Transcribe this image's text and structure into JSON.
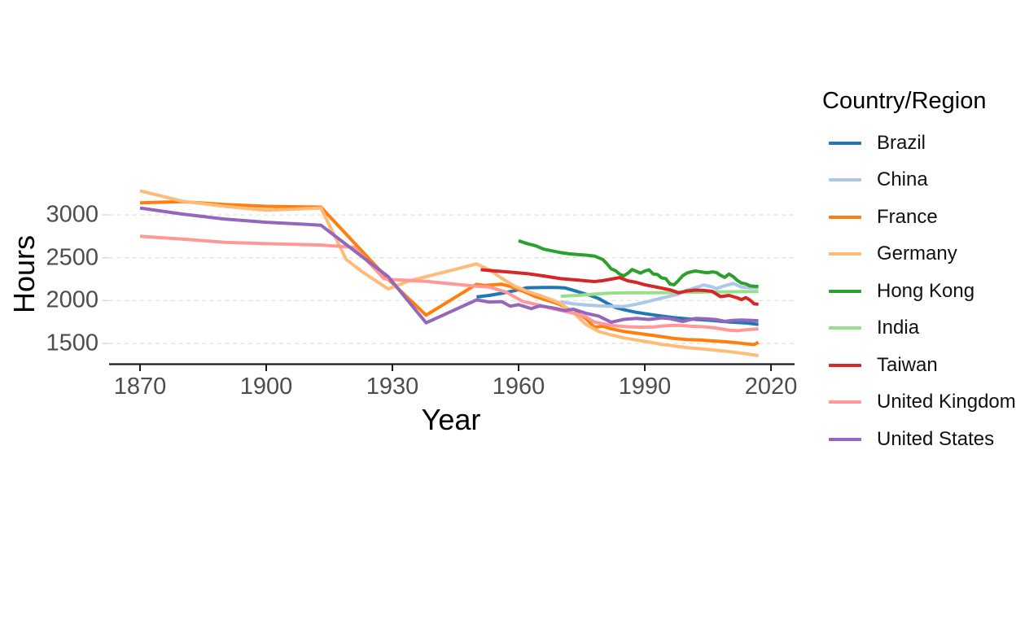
{
  "figure": {
    "background": "#ffffff",
    "kind": "line-chart-screenshot"
  },
  "axes": {
    "x": {
      "label": "Year",
      "ticks": [
        1870,
        1900,
        1930,
        1960,
        1990,
        2020
      ]
    },
    "y": {
      "label": "Hours",
      "ticks": [
        1500,
        2000,
        2500,
        3000
      ]
    }
  },
  "legend": {
    "title": "Country/Region",
    "position": "right"
  },
  "styles": {
    "tick_label_color": "#4d4d4d",
    "axis_title_color": "#000000",
    "axis_line_color": "#1a1a1a",
    "grid_color": "#e3e3e3",
    "y_tick_mark_color": "#d6d6d6",
    "series_stroke_width": 4
  },
  "chart_data": {
    "type": "line",
    "title": "",
    "xlabel": "Year",
    "ylabel": "Hours",
    "xlim": [
      1862.65,
      2025.6
    ],
    "ylim": [
      1258,
      3399
    ],
    "x_ticks": [
      1870,
      1900,
      1930,
      1960,
      1990,
      2020
    ],
    "y_ticks": [
      1500,
      2000,
      2500,
      3000
    ],
    "grid": "horizontal-dashed-major-y",
    "legend_position": "right",
    "legend_title": "Country/Region",
    "series": [
      {
        "name": "Brazil",
        "color": "#1f77b4",
        "points": [
          [
            1950,
            2042
          ],
          [
            1953,
            2060
          ],
          [
            1956,
            2085
          ],
          [
            1959,
            2115
          ],
          [
            1962,
            2150
          ],
          [
            1966,
            2153
          ],
          [
            1969,
            2152
          ],
          [
            1971,
            2148
          ],
          [
            1973,
            2120
          ],
          [
            1975,
            2090
          ],
          [
            1977,
            2060
          ],
          [
            1979,
            2025
          ],
          [
            1981,
            1970
          ],
          [
            1983,
            1920
          ],
          [
            1985,
            1893
          ],
          [
            1988,
            1863
          ],
          [
            1991,
            1840
          ],
          [
            1994,
            1820
          ],
          [
            1997,
            1800
          ],
          [
            2000,
            1788
          ],
          [
            2003,
            1778
          ],
          [
            2006,
            1768
          ],
          [
            2009,
            1755
          ],
          [
            2012,
            1745
          ],
          [
            2014,
            1738
          ],
          [
            2016,
            1728
          ],
          [
            2017,
            1722
          ]
        ]
      },
      {
        "name": "China",
        "color": "#aec7e8",
        "points": [
          [
            1970,
            1985
          ],
          [
            1973,
            1962
          ],
          [
            1976,
            1948
          ],
          [
            1979,
            1940
          ],
          [
            1982,
            1933
          ],
          [
            1985,
            1930
          ],
          [
            1988,
            1958
          ],
          [
            1990,
            1980
          ],
          [
            1992,
            2005
          ],
          [
            1995,
            2040
          ],
          [
            1998,
            2075
          ],
          [
            2000,
            2122
          ],
          [
            2002,
            2150
          ],
          [
            2004,
            2182
          ],
          [
            2006,
            2160
          ],
          [
            2007,
            2140
          ],
          [
            2009,
            2172
          ],
          [
            2011,
            2200
          ],
          [
            2013,
            2158
          ],
          [
            2015,
            2150
          ],
          [
            2017,
            2147
          ]
        ]
      },
      {
        "name": "France",
        "color": "#ff7f0e",
        "points": [
          [
            1870,
            3140
          ],
          [
            1880,
            3155
          ],
          [
            1890,
            3122
          ],
          [
            1900,
            3100
          ],
          [
            1913,
            3090
          ],
          [
            1929,
            2250
          ],
          [
            1938,
            1830
          ],
          [
            1950,
            2190
          ],
          [
            1952,
            2175
          ],
          [
            1954,
            2185
          ],
          [
            1956,
            2190
          ],
          [
            1958,
            2165
          ],
          [
            1960,
            2130
          ],
          [
            1962,
            2090
          ],
          [
            1964,
            2046
          ],
          [
            1966,
            2015
          ],
          [
            1968,
            1985
          ],
          [
            1970,
            1950
          ],
          [
            1972,
            1900
          ],
          [
            1974,
            1852
          ],
          [
            1976,
            1790
          ],
          [
            1978,
            1690
          ],
          [
            1980,
            1700
          ],
          [
            1982,
            1670
          ],
          [
            1985,
            1640
          ],
          [
            1988,
            1620
          ],
          [
            1991,
            1600
          ],
          [
            1994,
            1580
          ],
          [
            1997,
            1558
          ],
          [
            2000,
            1545
          ],
          [
            2003,
            1540
          ],
          [
            2006,
            1530
          ],
          [
            2009,
            1520
          ],
          [
            2012,
            1508
          ],
          [
            2014,
            1495
          ],
          [
            2016,
            1487
          ],
          [
            2017,
            1512
          ]
        ]
      },
      {
        "name": "Germany",
        "color": "#ffbb78",
        "points": [
          [
            1870,
            3281
          ],
          [
            1880,
            3160
          ],
          [
            1890,
            3100
          ],
          [
            1900,
            3053
          ],
          [
            1913,
            3080
          ],
          [
            1919,
            2480
          ],
          [
            1923,
            2330
          ],
          [
            1929,
            2135
          ],
          [
            1934,
            2230
          ],
          [
            1938,
            2280
          ],
          [
            1950,
            2428
          ],
          [
            1953,
            2360
          ],
          [
            1956,
            2260
          ],
          [
            1959,
            2170
          ],
          [
            1962,
            2110
          ],
          [
            1965,
            2060
          ],
          [
            1968,
            2008
          ],
          [
            1970,
            1965
          ],
          [
            1973,
            1860
          ],
          [
            1976,
            1720
          ],
          [
            1979,
            1640
          ],
          [
            1982,
            1600
          ],
          [
            1985,
            1565
          ],
          [
            1988,
            1540
          ],
          [
            1991,
            1515
          ],
          [
            1994,
            1490
          ],
          [
            1997,
            1470
          ],
          [
            2000,
            1452
          ],
          [
            2003,
            1438
          ],
          [
            2006,
            1425
          ],
          [
            2008,
            1415
          ],
          [
            2010,
            1405
          ],
          [
            2012,
            1393
          ],
          [
            2014,
            1380
          ],
          [
            2016,
            1365
          ],
          [
            2017,
            1356
          ]
        ]
      },
      {
        "name": "Hong Kong",
        "color": "#2ca02c",
        "points": [
          [
            1960,
            2698
          ],
          [
            1962,
            2665
          ],
          [
            1964,
            2640
          ],
          [
            1966,
            2600
          ],
          [
            1968,
            2580
          ],
          [
            1970,
            2560
          ],
          [
            1972,
            2545
          ],
          [
            1974,
            2538
          ],
          [
            1976,
            2530
          ],
          [
            1978,
            2520
          ],
          [
            1980,
            2480
          ],
          [
            1981,
            2430
          ],
          [
            1982,
            2370
          ],
          [
            1983,
            2350
          ],
          [
            1984,
            2310
          ],
          [
            1985,
            2288
          ],
          [
            1986,
            2320
          ],
          [
            1987,
            2362
          ],
          [
            1988,
            2340
          ],
          [
            1989,
            2320
          ],
          [
            1990,
            2345
          ],
          [
            1991,
            2358
          ],
          [
            1992,
            2310
          ],
          [
            1993,
            2305
          ],
          [
            1994,
            2265
          ],
          [
            1995,
            2255
          ],
          [
            1996,
            2192
          ],
          [
            1997,
            2185
          ],
          [
            1998,
            2235
          ],
          [
            1999,
            2290
          ],
          [
            2000,
            2320
          ],
          [
            2001,
            2335
          ],
          [
            2002,
            2345
          ],
          [
            2003,
            2338
          ],
          [
            2004,
            2330
          ],
          [
            2005,
            2325
          ],
          [
            2006,
            2335
          ],
          [
            2007,
            2328
          ],
          [
            2008,
            2295
          ],
          [
            2009,
            2270
          ],
          [
            2010,
            2310
          ],
          [
            2011,
            2280
          ],
          [
            2012,
            2235
          ],
          [
            2013,
            2205
          ],
          [
            2014,
            2195
          ],
          [
            2015,
            2172
          ],
          [
            2016,
            2168
          ],
          [
            2017,
            2165
          ]
        ]
      },
      {
        "name": "India",
        "color": "#98df8a",
        "points": [
          [
            1970,
            2051
          ],
          [
            1974,
            2060
          ],
          [
            1978,
            2075
          ],
          [
            1982,
            2088
          ],
          [
            1986,
            2092
          ],
          [
            1990,
            2092
          ],
          [
            1995,
            2093
          ],
          [
            2000,
            2096
          ],
          [
            2005,
            2100
          ],
          [
            2010,
            2102
          ],
          [
            2014,
            2105
          ],
          [
            2017,
            2106
          ]
        ]
      },
      {
        "name": "Taiwan",
        "color": "#d62728",
        "points": [
          [
            1951,
            2360
          ],
          [
            1954,
            2347
          ],
          [
            1958,
            2332
          ],
          [
            1962,
            2315
          ],
          [
            1966,
            2287
          ],
          [
            1970,
            2256
          ],
          [
            1974,
            2240
          ],
          [
            1978,
            2222
          ],
          [
            1980,
            2232
          ],
          [
            1982,
            2250
          ],
          [
            1984,
            2268
          ],
          [
            1986,
            2230
          ],
          [
            1988,
            2212
          ],
          [
            1990,
            2185
          ],
          [
            1993,
            2155
          ],
          [
            1996,
            2125
          ],
          [
            1998,
            2092
          ],
          [
            2000,
            2112
          ],
          [
            2002,
            2122
          ],
          [
            2004,
            2118
          ],
          [
            2006,
            2108
          ],
          [
            2008,
            2046
          ],
          [
            2010,
            2060
          ],
          [
            2012,
            2032
          ],
          [
            2013,
            2012
          ],
          [
            2014,
            2035
          ],
          [
            2015,
            2006
          ],
          [
            2016,
            1962
          ],
          [
            2017,
            1957
          ]
        ]
      },
      {
        "name": "United Kingdom",
        "color": "#ff9896",
        "points": [
          [
            1870,
            2750
          ],
          [
            1880,
            2718
          ],
          [
            1890,
            2680
          ],
          [
            1900,
            2664
          ],
          [
            1913,
            2648
          ],
          [
            1921,
            2620
          ],
          [
            1928,
            2255
          ],
          [
            1930,
            2245
          ],
          [
            1938,
            2225
          ],
          [
            1950,
            2168
          ],
          [
            1953,
            2158
          ],
          [
            1957,
            2100
          ],
          [
            1961,
            1990
          ],
          [
            1965,
            1945
          ],
          [
            1968,
            1906
          ],
          [
            1971,
            1874
          ],
          [
            1974,
            1840
          ],
          [
            1976,
            1811
          ],
          [
            1978,
            1750
          ],
          [
            1980,
            1730
          ],
          [
            1983,
            1705
          ],
          [
            1986,
            1695
          ],
          [
            1989,
            1690
          ],
          [
            1992,
            1692
          ],
          [
            1995,
            1706
          ],
          [
            1998,
            1712
          ],
          [
            2001,
            1700
          ],
          [
            2004,
            1695
          ],
          [
            2007,
            1680
          ],
          [
            2010,
            1655
          ],
          [
            2012,
            1648
          ],
          [
            2014,
            1660
          ],
          [
            2017,
            1670
          ]
        ]
      },
      {
        "name": "United States",
        "color": "#9467bd",
        "points": [
          [
            1870,
            3080
          ],
          [
            1880,
            3010
          ],
          [
            1890,
            2952
          ],
          [
            1900,
            2914
          ],
          [
            1913,
            2880
          ],
          [
            1929,
            2280
          ],
          [
            1938,
            1740
          ],
          [
            1950,
            2008
          ],
          [
            1953,
            1983
          ],
          [
            1956,
            1988
          ],
          [
            1958,
            1935
          ],
          [
            1960,
            1952
          ],
          [
            1963,
            1906
          ],
          [
            1965,
            1938
          ],
          [
            1968,
            1916
          ],
          [
            1971,
            1884
          ],
          [
            1973,
            1900
          ],
          [
            1976,
            1852
          ],
          [
            1979,
            1820
          ],
          [
            1982,
            1748
          ],
          [
            1985,
            1780
          ],
          [
            1988,
            1792
          ],
          [
            1991,
            1780
          ],
          [
            1994,
            1798
          ],
          [
            1996,
            1790
          ],
          [
            1999,
            1756
          ],
          [
            2002,
            1792
          ],
          [
            2005,
            1786
          ],
          [
            2007,
            1778
          ],
          [
            2009,
            1757
          ],
          [
            2011,
            1770
          ],
          [
            2013,
            1774
          ],
          [
            2015,
            1770
          ],
          [
            2017,
            1765
          ]
        ]
      }
    ]
  }
}
